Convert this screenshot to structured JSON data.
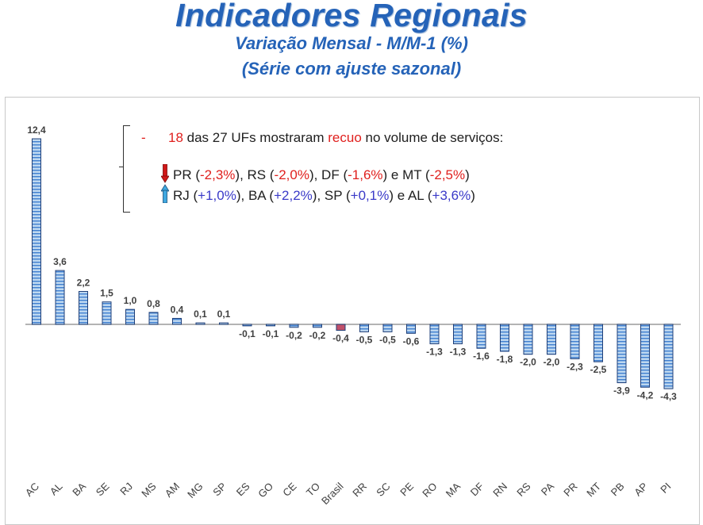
{
  "header": {
    "title": "Indicadores Regionais",
    "subtitle_1": "Variação Mensal - M/M-1 (%)",
    "subtitle_2": "(Série com ajuste sazonal)"
  },
  "annotation": {
    "line1": {
      "dash": "-",
      "count": "18",
      "text_a": " das 27 UFs mostraram ",
      "highlight": "recuo",
      "text_b": " no volume de serviços:"
    },
    "line2": [
      {
        "t": "PR (",
        "c": "n"
      },
      {
        "t": "-2,3%",
        "c": "r"
      },
      {
        "t": "), RS (",
        "c": "n"
      },
      {
        "t": "-2,0%",
        "c": "r"
      },
      {
        "t": "), DF (",
        "c": "n"
      },
      {
        "t": "-1,6%",
        "c": "r"
      },
      {
        "t": ") e MT (",
        "c": "n"
      },
      {
        "t": "-2,5%",
        "c": "r"
      },
      {
        "t": ")",
        "c": "n"
      }
    ],
    "line3": [
      {
        "t": "RJ (",
        "c": "n"
      },
      {
        "t": "+1,0%",
        "c": "b"
      },
      {
        "t": "), BA (",
        "c": "n"
      },
      {
        "t": "+2,2%",
        "c": "b"
      },
      {
        "t": "), SP (",
        "c": "n"
      },
      {
        "t": "+0,1%",
        "c": "b"
      },
      {
        "t": ") e AL (",
        "c": "n"
      },
      {
        "t": "+3,6%",
        "c": "b"
      },
      {
        "t": ")",
        "c": "n"
      }
    ],
    "down_icon": "red-down-arrow-icon",
    "up_icon": "blue-up-arrow-icon"
  },
  "colors": {
    "title": "#2563b8",
    "bar_fill": "#bdd7f0",
    "bar_stripe": "#3f7fd0",
    "bar_border": "#1f3f78",
    "brasil_bar": "#c0506a",
    "down_arrow": "#d01818",
    "up_arrow": "#40a8e0"
  },
  "chart_data": {
    "type": "bar",
    "title": "Variação Mensal - M/M-1 (%)",
    "categories": [
      "AC",
      "AL",
      "BA",
      "SE",
      "RJ",
      "MS",
      "AM",
      "MG",
      "SP",
      "ES",
      "GO",
      "CE",
      "TO",
      "Brasil",
      "RR",
      "SC",
      "PE",
      "RO",
      "MA",
      "DF",
      "RN",
      "RS",
      "PA",
      "PR",
      "MT",
      "PB",
      "AP",
      "PI"
    ],
    "values": [
      12.4,
      3.6,
      2.2,
      1.5,
      1.0,
      0.8,
      0.4,
      0.1,
      0.1,
      -0.1,
      -0.1,
      -0.2,
      -0.2,
      -0.4,
      -0.5,
      -0.5,
      -0.6,
      -1.3,
      -1.3,
      -1.6,
      -1.8,
      -2.0,
      -2.0,
      -2.3,
      -2.5,
      -3.9,
      -4.2,
      -4.3
    ],
    "value_labels": [
      "12,4",
      "3,6",
      "2,2",
      "1,5",
      "1,0",
      "0,8",
      "0,4",
      "0,1",
      "0,1",
      "-0,1",
      "-0,1",
      "-0,2",
      "-0,2",
      "-0,4",
      "-0,5",
      "-0,5",
      "-0,6",
      "-1,3",
      "-1,3",
      "-1,6",
      "-1,8",
      "-2,0",
      "-2,0",
      "-2,3",
      "-2,5",
      "-3,9",
      "-4,2",
      "-4,3"
    ],
    "highlight_category": "Brasil",
    "xlabel": "",
    "ylabel": "",
    "ylim": [
      -4.3,
      12.4
    ],
    "grid": false,
    "legend": "none"
  }
}
